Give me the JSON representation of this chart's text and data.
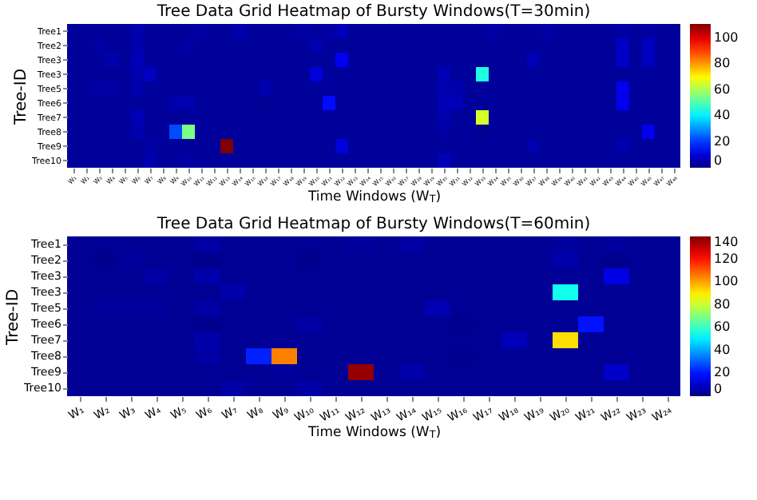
{
  "chart_data": [
    {
      "type": "heatmap",
      "title": "Tree Data Grid Heatmap of Bursty Windows(T=30min)",
      "xlabel": "Time Windows (W$_{T}$)",
      "ylabel": "Tree-ID",
      "categories": [
        "W₁",
        "W₂",
        "W₃",
        "W₄",
        "W₅",
        "W₆",
        "W₇",
        "W₈",
        "W₉",
        "W₁₀",
        "W₁₁",
        "W₁₂",
        "W₁₃",
        "W₁₄",
        "W₁₅",
        "W₁₆",
        "W₁₇",
        "W₁₈",
        "W₁₉",
        "W₂₀",
        "W₂₁",
        "W₂₂",
        "W₂₃",
        "W₂₄",
        "W₂₅",
        "W₂₆",
        "W₂₇",
        "W₂₈",
        "W₂₉",
        "W₃₀",
        "W₃₁",
        "W₃₂",
        "W₃₃",
        "W₃₄",
        "W₃₅",
        "W₃₆",
        "W₃₇",
        "W₃₈",
        "W₃₉",
        "W₄₀",
        "W₄₁",
        "W₄₂",
        "W₄₃",
        "W₄₄",
        "W₄₅",
        "W₄₆",
        "W₄₇",
        "W₄₈"
      ],
      "y_categories": [
        "Tree1",
        "Tree2",
        "Tree3",
        "Tree3",
        "Tree5",
        "Tree6",
        "Tree7",
        "Tree8",
        "Tree9",
        "Tree10"
      ],
      "cells": [
        [
          3,
          3,
          3,
          3,
          3,
          5,
          3,
          3,
          3,
          3,
          4,
          3,
          3,
          5,
          3,
          3,
          3,
          3,
          4,
          3,
          4,
          6,
          3,
          3,
          3,
          3,
          3,
          3,
          3,
          3,
          3,
          3,
          3,
          4,
          3,
          3,
          3,
          4,
          3,
          3,
          3,
          3,
          3,
          4,
          3,
          4,
          3,
          3
        ],
        [
          3,
          3,
          4,
          3,
          3,
          5,
          3,
          3,
          3,
          4,
          3,
          3,
          3,
          3,
          3,
          3,
          3,
          3,
          3,
          5,
          3,
          3,
          3,
          3,
          3,
          3,
          3,
          3,
          3,
          3,
          3,
          3,
          3,
          3,
          3,
          3,
          3,
          3,
          3,
          3,
          3,
          3,
          3,
          8,
          3,
          7,
          3,
          3
        ],
        [
          3,
          3,
          3,
          5,
          3,
          6,
          3,
          3,
          3,
          3,
          3,
          3,
          3,
          3,
          3,
          3,
          3,
          3,
          3,
          3,
          3,
          12,
          3,
          3,
          3,
          3,
          3,
          3,
          3,
          3,
          3,
          3,
          3,
          3,
          3,
          3,
          6,
          3,
          3,
          3,
          3,
          3,
          3,
          8,
          3,
          7,
          3,
          3
        ],
        [
          3,
          3,
          3,
          3,
          3,
          5,
          7,
          3,
          3,
          3,
          3,
          3,
          3,
          3,
          3,
          3,
          3,
          3,
          3,
          10,
          3,
          3,
          3,
          3,
          3,
          3,
          3,
          3,
          3,
          6,
          3,
          3,
          45,
          3,
          3,
          3,
          3,
          3,
          3,
          3,
          3,
          3,
          3,
          3,
          3,
          3,
          3,
          3
        ],
        [
          3,
          3,
          4,
          4,
          3,
          5,
          3,
          3,
          3,
          3,
          3,
          3,
          3,
          3,
          3,
          5,
          3,
          3,
          3,
          3,
          3,
          3,
          3,
          3,
          3,
          3,
          3,
          3,
          3,
          5,
          5,
          3,
          3,
          3,
          3,
          3,
          3,
          3,
          3,
          3,
          3,
          3,
          3,
          12,
          3,
          3,
          3,
          3
        ],
        [
          3,
          3,
          3,
          3,
          3,
          3,
          3,
          3,
          5,
          5,
          3,
          3,
          3,
          3,
          3,
          2,
          3,
          3,
          3,
          3,
          15,
          3,
          3,
          3,
          3,
          3,
          3,
          3,
          3,
          6,
          6,
          3,
          3,
          3,
          3,
          3,
          3,
          3,
          3,
          3,
          3,
          3,
          3,
          12,
          3,
          3,
          3,
          3
        ],
        [
          3,
          3,
          3,
          3,
          3,
          6,
          3,
          3,
          3,
          3,
          3,
          3,
          3,
          3,
          3,
          3,
          3,
          3,
          3,
          3,
          3,
          3,
          3,
          3,
          3,
          3,
          3,
          3,
          3,
          5,
          3,
          3,
          65,
          3,
          3,
          3,
          3,
          3,
          3,
          3,
          3,
          3,
          3,
          3,
          3,
          3,
          3,
          3
        ],
        [
          3,
          3,
          3,
          3,
          3,
          5,
          3,
          3,
          22,
          55,
          3,
          3,
          3,
          3,
          3,
          3,
          3,
          3,
          3,
          3,
          3,
          3,
          3,
          3,
          3,
          3,
          3,
          3,
          3,
          4,
          3,
          3,
          2,
          3,
          3,
          3,
          3,
          3,
          3,
          3,
          3,
          3,
          3,
          3,
          3,
          12,
          3,
          3
        ],
        [
          3,
          3,
          3,
          3,
          3,
          3,
          4,
          3,
          3,
          3,
          3,
          3,
          111,
          3,
          3,
          3,
          3,
          3,
          3,
          3,
          3,
          10,
          3,
          3,
          3,
          3,
          3,
          3,
          3,
          3,
          3,
          3,
          3,
          3,
          3,
          3,
          5,
          3,
          3,
          3,
          3,
          3,
          3,
          5,
          3,
          3,
          3,
          3
        ],
        [
          3,
          3,
          3,
          3,
          3,
          3,
          5,
          3,
          3,
          4,
          3,
          3,
          3,
          3,
          3,
          3,
          3,
          3,
          3,
          3,
          3,
          3,
          3,
          3,
          3,
          3,
          3,
          3,
          3,
          6,
          3,
          3,
          3,
          3,
          3,
          3,
          3,
          3,
          3,
          3,
          3,
          3,
          3,
          3,
          3,
          3,
          3,
          3
        ]
      ],
      "clim": [
        0,
        111
      ],
      "cticks": [
        0,
        20,
        40,
        60,
        80,
        100
      ]
    },
    {
      "type": "heatmap",
      "title": "Tree Data Grid Heatmap of Bursty Windows(T=60min)",
      "xlabel": "Time Windows (W$_{T}$)",
      "ylabel": "Tree-ID",
      "categories": [
        "W₁",
        "W₂",
        "W₃",
        "W₄",
        "W₅",
        "W₆",
        "W₇",
        "W₈",
        "W₉",
        "W₁₀",
        "W₁₁",
        "W₁₂",
        "W₁₃",
        "W₁₄",
        "W₁₅",
        "W₁₆",
        "W₁₇",
        "W₁₈",
        "W₁₉",
        "W₂₀",
        "W₂₁",
        "W₂₂",
        "W₂₃",
        "W₂₄"
      ],
      "y_categories": [
        "Tree1",
        "Tree2",
        "Tree3",
        "Tree3",
        "Tree5",
        "Tree6",
        "Tree7",
        "Tree8",
        "Tree9",
        "Tree10"
      ],
      "cells": [
        [
          3,
          3,
          3,
          3,
          3,
          5,
          3,
          3,
          3,
          3,
          3,
          4,
          3,
          5,
          3,
          3,
          3,
          3,
          3,
          4,
          3,
          4,
          3,
          3
        ],
        [
          3,
          2,
          4,
          3,
          3,
          2,
          3,
          3,
          3,
          2,
          3,
          3,
          3,
          3,
          3,
          3,
          3,
          3,
          3,
          6,
          3,
          2,
          3,
          3
        ],
        [
          3,
          3,
          3,
          5,
          3,
          6,
          3,
          3,
          3,
          3,
          3,
          3,
          3,
          3,
          3,
          3,
          3,
          3,
          3,
          3,
          3,
          14,
          3,
          3
        ],
        [
          3,
          3,
          3,
          3,
          3,
          3,
          6,
          3,
          3,
          3,
          3,
          3,
          3,
          3,
          3,
          3,
          3,
          3,
          3,
          55,
          3,
          3,
          3,
          3
        ],
        [
          3,
          4,
          4,
          4,
          3,
          5,
          3,
          3,
          3,
          3,
          3,
          3,
          3,
          3,
          7,
          3,
          3,
          3,
          3,
          3,
          3,
          3,
          3,
          3
        ],
        [
          3,
          3,
          3,
          3,
          3,
          2,
          3,
          3,
          3,
          5,
          3,
          3,
          3,
          3,
          3,
          2,
          3,
          3,
          3,
          3,
          20,
          3,
          3,
          3
        ],
        [
          3,
          3,
          3,
          3,
          3,
          6,
          3,
          3,
          3,
          3,
          3,
          3,
          3,
          3,
          3,
          3,
          3,
          8,
          3,
          92,
          3,
          3,
          3,
          3
        ],
        [
          3,
          3,
          3,
          3,
          3,
          5,
          3,
          22,
          105,
          3,
          3,
          3,
          3,
          3,
          3,
          2,
          3,
          3,
          3,
          3,
          3,
          3,
          3,
          3
        ],
        [
          3,
          3,
          3,
          3,
          3,
          3,
          3,
          3,
          4,
          3,
          3,
          137,
          3,
          6,
          3,
          3,
          3,
          3,
          3,
          3,
          3,
          10,
          3,
          3
        ],
        [
          3,
          3,
          3,
          3,
          3,
          3,
          5,
          3,
          3,
          5,
          3,
          3,
          3,
          3,
          3,
          3,
          3,
          3,
          3,
          3,
          3,
          3,
          3,
          3
        ]
      ],
      "clim": [
        0,
        140
      ],
      "cticks": [
        0,
        20,
        40,
        60,
        80,
        100,
        120,
        140
      ]
    }
  ]
}
